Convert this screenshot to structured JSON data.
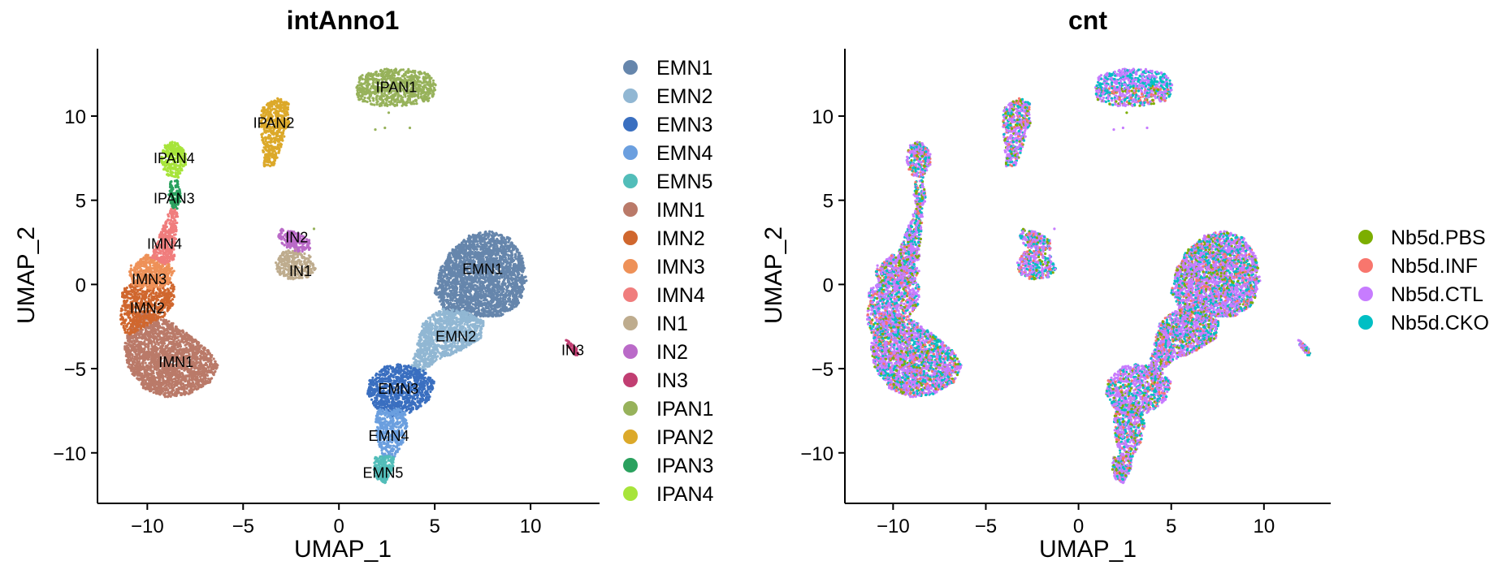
{
  "chart_data": [
    {
      "type": "scatter",
      "title": "intAnno1",
      "xlabel": "UMAP_1",
      "ylabel": "UMAP_2",
      "xlim": [
        -12.5,
        13.5
      ],
      "ylim": [
        -13,
        14
      ],
      "xticks": [
        -10,
        -5,
        0,
        5,
        10
      ],
      "yticks": [
        -10,
        -5,
        0,
        5,
        10
      ],
      "xtick_labels": [
        "−10",
        "−5",
        "0",
        "5",
        "10"
      ],
      "ytick_labels": [
        "−10",
        "−5",
        "0",
        "5",
        "10"
      ],
      "grid": false,
      "legend_position": "right",
      "legend": [
        {
          "name": "EMN1",
          "color": "#6686AC"
        },
        {
          "name": "EMN2",
          "color": "#91B7D3"
        },
        {
          "name": "EMN3",
          "color": "#3A6FC0"
        },
        {
          "name": "EMN4",
          "color": "#6B9FDF"
        },
        {
          "name": "EMN5",
          "color": "#52BDB9"
        },
        {
          "name": "IMN1",
          "color": "#BA7A69"
        },
        {
          "name": "IMN2",
          "color": "#D0672E"
        },
        {
          "name": "IMN3",
          "color": "#EE9158"
        },
        {
          "name": "IMN4",
          "color": "#F07D7D"
        },
        {
          "name": "IN1",
          "color": "#BEAC8E"
        },
        {
          "name": "IN2",
          "color": "#BA6AC8"
        },
        {
          "name": "IN3",
          "color": "#C13E72"
        },
        {
          "name": "IPAN1",
          "color": "#97B25B"
        },
        {
          "name": "IPAN2",
          "color": "#DCA92A"
        },
        {
          "name": "IPAN3",
          "color": "#2AA15E"
        },
        {
          "name": "IPAN4",
          "color": "#A7E43A"
        }
      ],
      "cluster_labels": [
        {
          "text": "EMN1",
          "x": 7.5,
          "y": 0.9
        },
        {
          "text": "EMN2",
          "x": 6.1,
          "y": -3.1
        },
        {
          "text": "EMN3",
          "x": 3.1,
          "y": -6.2
        },
        {
          "text": "EMN4",
          "x": 2.6,
          "y": -9.0
        },
        {
          "text": "EMN5",
          "x": 2.3,
          "y": -11.2
        },
        {
          "text": "IMN1",
          "x": -8.5,
          "y": -4.6
        },
        {
          "text": "IMN2",
          "x": -10.0,
          "y": -1.4
        },
        {
          "text": "IMN3",
          "x": -9.9,
          "y": 0.3
        },
        {
          "text": "IMN4",
          "x": -9.1,
          "y": 2.4
        },
        {
          "text": "IN1",
          "x": -2.0,
          "y": 0.8
        },
        {
          "text": "IN2",
          "x": -2.2,
          "y": 2.8
        },
        {
          "text": "IN3",
          "x": 12.2,
          "y": -3.9
        },
        {
          "text": "IPAN1",
          "x": 3.0,
          "y": 11.7
        },
        {
          "text": "IPAN2",
          "x": -3.4,
          "y": 9.6
        },
        {
          "text": "IPAN3",
          "x": -8.6,
          "y": 5.1
        },
        {
          "text": "IPAN4",
          "x": -8.6,
          "y": 7.5
        }
      ],
      "clusters": [
        {
          "name": "EMN1",
          "shape": [
            [
              5.0,
              -0.5
            ],
            [
              5.3,
              1.0
            ],
            [
              5.9,
              2.1
            ],
            [
              6.8,
              2.9
            ],
            [
              7.8,
              3.2
            ],
            [
              8.9,
              2.8
            ],
            [
              9.6,
              1.6
            ],
            [
              9.8,
              0.2
            ],
            [
              9.4,
              -1.2
            ],
            [
              8.4,
              -1.9
            ],
            [
              6.8,
              -1.9
            ],
            [
              5.5,
              -1.5
            ]
          ],
          "n": 2600
        },
        {
          "name": "EMN2",
          "shape": [
            [
              4.4,
              -2.2
            ],
            [
              5.4,
              -1.4
            ],
            [
              6.6,
              -1.6
            ],
            [
              7.6,
              -2.2
            ],
            [
              7.4,
              -3.2
            ],
            [
              6.4,
              -3.9
            ],
            [
              5.2,
              -4.5
            ],
            [
              4.3,
              -5.2
            ],
            [
              3.7,
              -5.4
            ],
            [
              3.9,
              -4.3
            ]
          ],
          "n": 1200
        },
        {
          "name": "EMN3",
          "shape": [
            [
              1.6,
              -5.7
            ],
            [
              2.3,
              -4.9
            ],
            [
              3.3,
              -4.7
            ],
            [
              4.4,
              -5.1
            ],
            [
              5.0,
              -5.8
            ],
            [
              4.7,
              -6.9
            ],
            [
              3.8,
              -7.6
            ],
            [
              2.8,
              -7.9
            ],
            [
              1.9,
              -7.3
            ],
            [
              1.5,
              -6.5
            ]
          ],
          "n": 900
        },
        {
          "name": "EMN4",
          "shape": [
            [
              2.0,
              -7.4
            ],
            [
              3.4,
              -7.4
            ],
            [
              3.6,
              -8.4
            ],
            [
              3.3,
              -9.6
            ],
            [
              2.9,
              -10.3
            ],
            [
              2.3,
              -10.3
            ],
            [
              2.0,
              -9.2
            ],
            [
              1.9,
              -8.2
            ]
          ],
          "n": 420
        },
        {
          "name": "EMN5",
          "shape": [
            [
              1.9,
              -10.2
            ],
            [
              2.9,
              -10.2
            ],
            [
              2.8,
              -11.1
            ],
            [
              2.4,
              -11.8
            ],
            [
              2.0,
              -11.6
            ],
            [
              1.8,
              -10.9
            ]
          ],
          "n": 220
        },
        {
          "name": "IMN1",
          "shape": [
            [
              -11.0,
              -2.6
            ],
            [
              -10.2,
              -1.6
            ],
            [
              -8.8,
              -2.2
            ],
            [
              -7.8,
              -3.0
            ],
            [
              -6.8,
              -3.9
            ],
            [
              -6.3,
              -4.8
            ],
            [
              -6.7,
              -5.8
            ],
            [
              -7.8,
              -6.5
            ],
            [
              -9.0,
              -6.7
            ],
            [
              -10.2,
              -6.2
            ],
            [
              -11.0,
              -5.0
            ],
            [
              -11.2,
              -3.6
            ]
          ],
          "n": 2300
        },
        {
          "name": "IMN2",
          "shape": [
            [
              -11.3,
              -0.3
            ],
            [
              -10.4,
              0.3
            ],
            [
              -9.2,
              0.4
            ],
            [
              -8.6,
              0.0
            ],
            [
              -8.6,
              -1.1
            ],
            [
              -9.2,
              -2.0
            ],
            [
              -10.3,
              -2.6
            ],
            [
              -11.1,
              -3.2
            ],
            [
              -11.4,
              -2.2
            ]
          ],
          "n": 700
        },
        {
          "name": "IMN3",
          "shape": [
            [
              -11.0,
              1.0
            ],
            [
              -10.0,
              1.8
            ],
            [
              -9.0,
              1.6
            ],
            [
              -8.6,
              0.8
            ],
            [
              -8.9,
              0.0
            ],
            [
              -9.8,
              -0.3
            ],
            [
              -10.8,
              0.0
            ]
          ],
          "n": 520
        },
        {
          "name": "IMN4",
          "shape": [
            [
              -9.8,
              1.6
            ],
            [
              -9.2,
              3.4
            ],
            [
              -8.7,
              4.8
            ],
            [
              -8.4,
              4.2
            ],
            [
              -8.5,
              2.8
            ],
            [
              -8.6,
              1.4
            ],
            [
              -9.1,
              1.2
            ]
          ],
          "n": 380
        },
        {
          "name": "IN1",
          "shape": [
            [
              -3.3,
              1.3
            ],
            [
              -2.9,
              2.0
            ],
            [
              -2.2,
              2.1
            ],
            [
              -1.5,
              1.7
            ],
            [
              -1.2,
              0.9
            ],
            [
              -1.6,
              0.4
            ],
            [
              -2.6,
              0.3
            ],
            [
              -3.2,
              0.6
            ]
          ],
          "n": 320
        },
        {
          "name": "IN2",
          "shape": [
            [
              -3.0,
              3.3
            ],
            [
              -2.2,
              3.1
            ],
            [
              -1.5,
              2.6
            ],
            [
              -1.5,
              2.0
            ],
            [
              -2.1,
              1.9
            ],
            [
              -2.9,
              2.3
            ],
            [
              -3.2,
              2.9
            ]
          ],
          "n": 200
        },
        {
          "name": "IN3",
          "shape": [
            [
              11.8,
              -3.2
            ],
            [
              12.0,
              -3.4
            ],
            [
              12.4,
              -3.8
            ],
            [
              12.6,
              -4.2
            ],
            [
              12.3,
              -4.2
            ],
            [
              11.9,
              -3.6
            ]
          ],
          "n": 55
        },
        {
          "name": "IPAN1",
          "shape": [
            [
              0.9,
              11.6
            ],
            [
              1.1,
              12.4
            ],
            [
              2.2,
              12.8
            ],
            [
              3.6,
              12.8
            ],
            [
              4.8,
              12.5
            ],
            [
              5.1,
              11.7
            ],
            [
              4.8,
              10.9
            ],
            [
              3.4,
              10.6
            ],
            [
              1.8,
              10.6
            ],
            [
              1.0,
              10.9
            ]
          ],
          "n": 800
        },
        {
          "name": "IPAN2",
          "shape": [
            [
              -4.0,
              10.6
            ],
            [
              -3.2,
              11.1
            ],
            [
              -2.6,
              10.8
            ],
            [
              -2.6,
              9.5
            ],
            [
              -3.0,
              8.2
            ],
            [
              -3.4,
              7.0
            ],
            [
              -3.9,
              7.0
            ],
            [
              -4.0,
              8.4
            ],
            [
              -4.1,
              9.6
            ]
          ],
          "n": 520
        },
        {
          "name": "IPAN3",
          "shape": [
            [
              -8.8,
              6.2
            ],
            [
              -8.4,
              6.2
            ],
            [
              -8.2,
              5.2
            ],
            [
              -8.4,
              4.5
            ],
            [
              -8.7,
              4.5
            ],
            [
              -8.9,
              5.4
            ]
          ],
          "n": 120
        },
        {
          "name": "IPAN4",
          "shape": [
            [
              -9.3,
              7.6
            ],
            [
              -9.1,
              8.3
            ],
            [
              -8.6,
              8.5
            ],
            [
              -8.0,
              8.1
            ],
            [
              -8.0,
              7.1
            ],
            [
              -8.4,
              6.3
            ],
            [
              -8.9,
              6.4
            ],
            [
              -9.2,
              6.9
            ]
          ],
          "n": 300
        }
      ]
    },
    {
      "type": "scatter",
      "title": "cnt",
      "xlabel": "UMAP_1",
      "ylabel": "UMAP_2",
      "xlim": [
        -12.5,
        13.5
      ],
      "ylim": [
        -13,
        14
      ],
      "xticks": [
        -10,
        -5,
        0,
        5,
        10
      ],
      "yticks": [
        -10,
        -5,
        0,
        5,
        10
      ],
      "xtick_labels": [
        "−10",
        "−5",
        "0",
        "5",
        "10"
      ],
      "ytick_labels": [
        "−10",
        "−5",
        "0",
        "5",
        "10"
      ],
      "grid": false,
      "legend_position": "right",
      "legend": [
        {
          "name": "Nb5d.PBS",
          "color": "#7CAE00"
        },
        {
          "name": "Nb5d.INF",
          "color": "#F8766D"
        },
        {
          "name": "Nb5d.CTL",
          "color": "#C77CFF"
        },
        {
          "name": "Nb5d.CKO",
          "color": "#00BFC4"
        }
      ],
      "group_mix": [
        0.12,
        0.12,
        0.52,
        0.24
      ]
    }
  ]
}
